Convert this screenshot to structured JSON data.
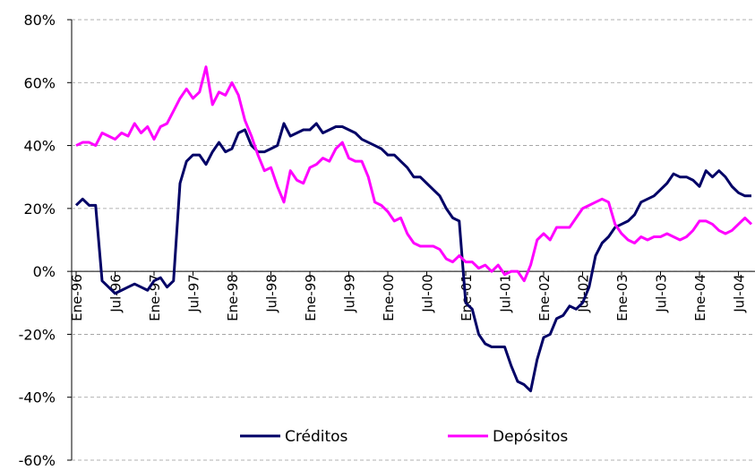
{
  "chart_data": {
    "type": "line",
    "categories": [
      "Ene-96",
      null,
      null,
      null,
      null,
      null,
      "Jul-96",
      null,
      null,
      null,
      null,
      null,
      "Ene-97",
      null,
      null,
      null,
      null,
      null,
      "Jul-97",
      null,
      null,
      null,
      null,
      null,
      "Ene-98",
      null,
      null,
      null,
      null,
      null,
      "Jul-98",
      null,
      null,
      null,
      null,
      null,
      "Ene-99",
      null,
      null,
      null,
      null,
      null,
      "Jul-99",
      null,
      null,
      null,
      null,
      null,
      "Ene-00",
      null,
      null,
      null,
      null,
      null,
      "Jul-00",
      null,
      null,
      null,
      null,
      null,
      "Ene-01",
      null,
      null,
      null,
      null,
      null,
      "Jul-01",
      null,
      null,
      null,
      null,
      null,
      "Ene-02",
      null,
      null,
      null,
      null,
      null,
      "Jul-02",
      null,
      null,
      null,
      null,
      null,
      "Ene-03",
      null,
      null,
      null,
      null,
      null,
      "Jul-03",
      null,
      null,
      null,
      null,
      null,
      "Ene-04",
      null,
      null,
      null,
      null,
      null,
      "Jul-04",
      null,
      null
    ],
    "series": [
      {
        "name": "Créditos",
        "color": "#000066",
        "values": [
          21,
          23,
          21,
          21,
          -3,
          -5,
          -7,
          -6,
          -5,
          -4,
          -5,
          -6,
          -3,
          -2,
          -5,
          -3,
          28,
          35,
          37,
          37,
          34,
          38,
          41,
          38,
          39,
          44,
          45,
          40,
          38,
          38,
          39,
          40,
          47,
          43,
          44,
          45,
          45,
          47,
          44,
          45,
          46,
          46,
          45,
          44,
          42,
          41,
          40,
          39,
          37,
          37,
          35,
          33,
          30,
          30,
          28,
          26,
          24,
          20,
          17,
          16,
          -10,
          -12,
          -20,
          -23,
          -24,
          -24,
          -24,
          -30,
          -35,
          -36,
          -38,
          -28,
          -21,
          -20,
          -15,
          -14,
          -11,
          -12,
          -10,
          -5,
          5,
          9,
          11,
          14,
          15,
          16,
          18,
          22,
          23,
          24,
          26,
          28,
          31,
          30,
          30,
          29,
          27,
          32,
          30,
          32,
          30,
          27,
          25,
          24,
          24
        ]
      },
      {
        "name": "Depósitos",
        "color": "#ff00ff",
        "values": [
          40,
          41,
          41,
          40,
          44,
          43,
          42,
          44,
          43,
          47,
          44,
          46,
          42,
          46,
          47,
          51,
          55,
          58,
          55,
          57,
          65,
          53,
          57,
          56,
          60,
          56,
          48,
          43,
          37,
          32,
          33,
          27,
          22,
          32,
          29,
          28,
          33,
          34,
          36,
          35,
          39,
          41,
          36,
          35,
          35,
          30,
          22,
          21,
          19,
          16,
          17,
          12,
          9,
          8,
          8,
          8,
          7,
          4,
          3,
          5,
          3,
          3,
          1,
          2,
          0,
          2,
          -1,
          0,
          0,
          -3,
          2,
          10,
          12,
          10,
          14,
          14,
          14,
          17,
          20,
          21,
          22,
          23,
          22,
          15,
          12,
          10,
          9,
          11,
          10,
          11,
          11,
          12,
          11,
          10,
          11,
          13,
          16,
          16,
          15,
          13,
          12,
          13,
          15,
          17,
          15
        ]
      }
    ],
    "ylim": [
      -60,
      80
    ],
    "yticks": [
      {
        "value": -60,
        "label": "-60%"
      },
      {
        "value": -40,
        "label": "-40%"
      },
      {
        "value": -20,
        "label": "-20%"
      },
      {
        "value": 0,
        "label": "0%"
      },
      {
        "value": 20,
        "label": "20%"
      },
      {
        "value": 40,
        "label": "40%"
      },
      {
        "value": 60,
        "label": "60%"
      },
      {
        "value": 80,
        "label": "80%"
      }
    ],
    "grid": true
  }
}
